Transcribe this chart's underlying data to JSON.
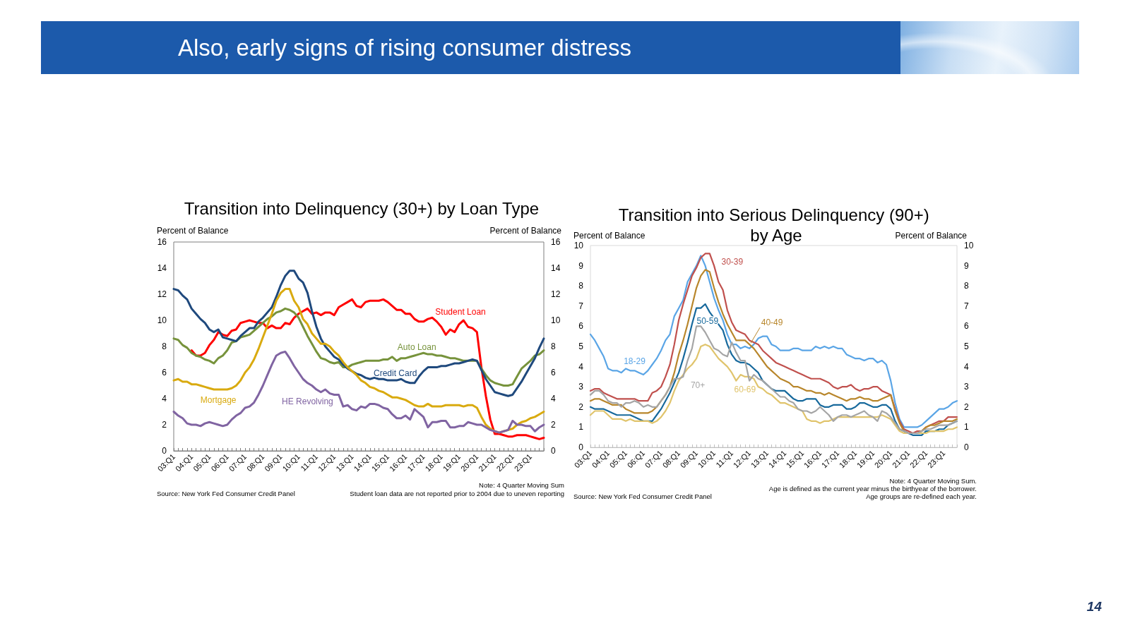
{
  "chart_data": [
    {
      "type": "other",
      "title": "Also, early signs of rising consumer distress",
      "annotations": [
        "14"
      ]
    },
    {
      "type": "line",
      "title": "Transition into Delinquency (30+) by Loan Type",
      "ylabel": "Percent of Balance",
      "y2label": "Percent of Balance",
      "categories": [
        "03:Q1",
        null,
        null,
        null,
        "04:Q1",
        null,
        null,
        null,
        "05:Q1",
        null,
        null,
        null,
        "06:Q1",
        null,
        null,
        null,
        "07:Q1",
        null,
        null,
        null,
        "08:Q1",
        null,
        null,
        null,
        "09:Q1",
        null,
        null,
        null,
        "10:Q1",
        null,
        null,
        null,
        "11:Q1",
        null,
        null,
        null,
        "12:Q1",
        null,
        null,
        null,
        "13:Q1",
        null,
        null,
        null,
        "14:Q1",
        null,
        null,
        null,
        "15:Q1",
        null,
        null,
        null,
        "16:Q1",
        null,
        null,
        null,
        "17:Q1",
        null,
        null,
        null,
        "18:Q1",
        null,
        null,
        null,
        "19:Q1",
        null,
        null,
        null,
        "20:Q1",
        null,
        null,
        null,
        "21:Q1",
        null,
        null,
        null,
        "22:Q1",
        null,
        null,
        null,
        "23:Q1",
        null,
        null,
        null
      ],
      "series": [
        {
          "name": "Student Loan",
          "color": "#ff0000",
          "values": [
            null,
            null,
            null,
            null,
            7.7,
            7.3,
            7.3,
            7.5,
            8.1,
            8.5,
            9.1,
            8.9,
            8.8,
            9.2,
            9.3,
            9.8,
            9.9,
            10.0,
            9.9,
            9.8,
            9.8,
            9.4,
            9.6,
            9.4,
            9.4,
            9.8,
            9.7,
            10.2,
            10.5,
            10.7,
            10.9,
            10.5,
            10.6,
            10.4,
            10.6,
            10.6,
            10.4,
            11.0,
            11.2,
            11.4,
            11.6,
            11.1,
            11.0,
            11.4,
            11.5,
            11.5,
            11.5,
            11.6,
            11.4,
            11.1,
            10.8,
            10.8,
            10.5,
            10.5,
            10.1,
            9.9,
            9.9,
            10.1,
            10.2,
            9.9,
            9.5,
            8.9,
            9.3,
            9.1,
            9.7,
            10.0,
            9.5,
            9.4,
            9.1,
            6.4,
            4.2,
            2.4,
            1.3,
            1.3,
            1.2,
            1.1,
            1.1,
            1.2,
            1.2,
            1.2,
            1.1,
            1.0,
            0.9,
            1.0
          ]
        },
        {
          "name": "Auto Loan",
          "color": "#77933c",
          "values": [
            8.6,
            8.5,
            8.1,
            7.9,
            7.5,
            7.3,
            7.2,
            7.0,
            6.9,
            6.7,
            7.1,
            7.3,
            7.7,
            8.3,
            8.4,
            8.7,
            8.8,
            8.9,
            9.2,
            9.5,
            9.8,
            10.1,
            10.3,
            10.6,
            10.7,
            10.9,
            10.8,
            10.6,
            10.2,
            9.5,
            8.8,
            8.2,
            7.6,
            7.1,
            7.0,
            6.8,
            6.7,
            6.8,
            6.4,
            6.4,
            6.6,
            6.7,
            6.8,
            6.9,
            6.9,
            6.9,
            6.9,
            7.0,
            7.0,
            7.2,
            6.9,
            7.1,
            7.1,
            7.2,
            7.3,
            7.4,
            7.5,
            7.4,
            7.4,
            7.3,
            7.3,
            7.2,
            7.1,
            7.1,
            7.0,
            6.9,
            6.9,
            6.9,
            6.9,
            6.3,
            5.8,
            5.4,
            5.2,
            5.1,
            5.0,
            5.0,
            5.1,
            5.7,
            6.3,
            6.6,
            6.9,
            7.3,
            7.4,
            7.7
          ]
        },
        {
          "name": "Credit Card",
          "color": "#1f497d",
          "values": [
            12.4,
            12.3,
            11.9,
            11.6,
            10.9,
            10.5,
            10.1,
            9.8,
            9.3,
            9.1,
            9.3,
            8.7,
            8.6,
            8.5,
            8.4,
            8.8,
            9.1,
            9.4,
            9.4,
            9.9,
            10.2,
            10.6,
            11.0,
            11.8,
            12.7,
            13.4,
            13.8,
            13.8,
            13.2,
            12.9,
            12.1,
            10.7,
            9.5,
            8.6,
            8.0,
            7.6,
            7.2,
            7.0,
            6.6,
            6.3,
            6.1,
            5.9,
            5.8,
            5.6,
            5.5,
            5.6,
            5.5,
            5.5,
            5.4,
            5.4,
            5.4,
            5.5,
            5.3,
            5.2,
            5.2,
            5.7,
            6.1,
            6.4,
            6.4,
            6.4,
            6.5,
            6.5,
            6.6,
            6.7,
            6.7,
            6.8,
            6.9,
            7.0,
            6.9,
            6.2,
            5.5,
            5.0,
            4.5,
            4.4,
            4.3,
            4.2,
            4.3,
            4.8,
            5.3,
            5.9,
            6.5,
            7.1,
            7.9,
            8.6
          ]
        },
        {
          "name": "Mortgage",
          "color": "#d9aa0f",
          "values": [
            5.4,
            5.5,
            5.3,
            5.3,
            5.1,
            5.1,
            5.0,
            4.9,
            4.8,
            4.7,
            4.7,
            4.7,
            4.7,
            4.8,
            5.0,
            5.4,
            6.0,
            6.4,
            7.0,
            7.8,
            8.7,
            9.6,
            10.5,
            11.5,
            12.1,
            12.4,
            12.4,
            11.5,
            11.0,
            10.1,
            9.7,
            9.0,
            8.6,
            8.2,
            8.2,
            8.0,
            7.6,
            7.3,
            6.8,
            6.4,
            6.1,
            5.8,
            5.4,
            5.2,
            4.9,
            4.8,
            4.6,
            4.5,
            4.3,
            4.1,
            4.1,
            4.0,
            3.9,
            3.7,
            3.5,
            3.4,
            3.4,
            3.6,
            3.4,
            3.4,
            3.4,
            3.5,
            3.5,
            3.5,
            3.5,
            3.4,
            3.5,
            3.5,
            3.3,
            2.6,
            2.0,
            1.7,
            1.5,
            1.4,
            1.5,
            1.6,
            1.7,
            2.0,
            2.2,
            2.3,
            2.5,
            2.6,
            2.8,
            3.0
          ]
        },
        {
          "name": "HE Revolving",
          "color": "#8064a2",
          "values": [
            3.0,
            2.7,
            2.5,
            2.1,
            2.0,
            2.0,
            1.9,
            2.1,
            2.2,
            2.1,
            2.0,
            1.9,
            2.0,
            2.4,
            2.7,
            2.9,
            3.3,
            3.4,
            3.7,
            4.3,
            5.0,
            5.8,
            6.6,
            7.3,
            7.5,
            7.6,
            7.1,
            6.5,
            6.0,
            5.5,
            5.2,
            5.0,
            4.7,
            4.5,
            4.7,
            4.4,
            4.3,
            4.3,
            3.4,
            3.5,
            3.2,
            3.1,
            3.4,
            3.3,
            3.6,
            3.6,
            3.5,
            3.3,
            3.2,
            2.8,
            2.5,
            2.5,
            2.7,
            2.4,
            3.2,
            2.9,
            2.6,
            1.8,
            2.2,
            2.2,
            2.3,
            2.3,
            1.8,
            1.8,
            1.9,
            1.9,
            2.2,
            2.1,
            2.0,
            2.0,
            1.8,
            1.6,
            1.5,
            1.4,
            1.5,
            1.6,
            2.3,
            2.0,
            2.0,
            1.9,
            1.9,
            1.5,
            1.8,
            2.0
          ]
        }
      ],
      "ylim": [
        0,
        16
      ],
      "yticks": [
        0,
        2,
        4,
        6,
        8,
        10,
        12,
        14,
        16
      ],
      "y2lim": [
        0,
        16
      ],
      "y2ticks": [
        0,
        2,
        4,
        6,
        8,
        10,
        12,
        14,
        16
      ],
      "annotations": [
        "Note: 4 Quarter Moving Sum",
        "Student loan data are not reported prior to 2004 due to uneven reporting",
        "Source: New York Fed Consumer Credit Panel"
      ]
    },
    {
      "type": "line",
      "title": "Transition into Serious Delinquency (90+) by Age",
      "ylabel": "Percent of Balance",
      "y2label": "Percent of Balance",
      "categories": [
        "03:Q1",
        null,
        null,
        null,
        "04:Q1",
        null,
        null,
        null,
        "05:Q1",
        null,
        null,
        null,
        "06:Q1",
        null,
        null,
        null,
        "07:Q1",
        null,
        null,
        null,
        "08:Q1",
        null,
        null,
        null,
        "09:Q1",
        null,
        null,
        null,
        "10:Q1",
        null,
        null,
        null,
        "11:Q1",
        null,
        null,
        null,
        "12:Q1",
        null,
        null,
        null,
        "13:Q1",
        null,
        null,
        null,
        "14:Q1",
        null,
        null,
        null,
        "15:Q1",
        null,
        null,
        null,
        "16:Q1",
        null,
        null,
        null,
        "17:Q1",
        null,
        null,
        null,
        "18:Q1",
        null,
        null,
        null,
        "19:Q1",
        null,
        null,
        null,
        "20:Q1",
        null,
        null,
        null,
        "21:Q1",
        null,
        null,
        null,
        "22:Q1",
        null,
        null,
        null,
        "23:Q1",
        null,
        null,
        null
      ],
      "series": [
        {
          "name": "18-29",
          "color": "#5aa5e6",
          "values": [
            5.6,
            5.3,
            4.9,
            4.5,
            3.9,
            3.8,
            3.8,
            3.7,
            3.9,
            3.8,
            3.8,
            3.7,
            3.6,
            3.8,
            4.1,
            4.4,
            4.8,
            5.3,
            5.6,
            6.5,
            6.9,
            7.3,
            8.2,
            8.6,
            9.0,
            9.5,
            9.0,
            8.2,
            7.4,
            6.8,
            6.3,
            5.6,
            5.1,
            5.1,
            4.9,
            5.0,
            4.9,
            5.1,
            5.4,
            5.5,
            5.5,
            5.1,
            5.0,
            4.8,
            4.8,
            4.8,
            4.9,
            4.9,
            4.8,
            4.8,
            4.8,
            5.0,
            4.9,
            5.0,
            4.9,
            5.0,
            4.9,
            4.9,
            4.6,
            4.5,
            4.4,
            4.4,
            4.3,
            4.4,
            4.4,
            4.2,
            4.3,
            4.1,
            3.3,
            2.2,
            1.4,
            1.0,
            1.0,
            1.0,
            1.0,
            1.1,
            1.3,
            1.5,
            1.7,
            1.9,
            1.9,
            2.0,
            2.2,
            2.3
          ]
        },
        {
          "name": "30-39",
          "color": "#c0504d",
          "values": [
            2.8,
            2.9,
            2.9,
            2.7,
            2.6,
            2.5,
            2.4,
            2.4,
            2.4,
            2.4,
            2.4,
            2.3,
            2.3,
            2.3,
            2.7,
            2.8,
            3.0,
            3.5,
            4.1,
            5.1,
            6.3,
            7.1,
            7.8,
            8.5,
            8.9,
            9.4,
            9.6,
            9.6,
            9.0,
            8.2,
            7.8,
            6.8,
            6.2,
            5.8,
            5.7,
            5.6,
            5.3,
            5.2,
            5.1,
            4.8,
            4.6,
            4.4,
            4.2,
            4.1,
            4.0,
            3.9,
            3.8,
            3.7,
            3.6,
            3.5,
            3.4,
            3.4,
            3.4,
            3.3,
            3.2,
            3.0,
            2.9,
            3.0,
            3.0,
            3.1,
            2.9,
            2.8,
            2.9,
            2.9,
            3.0,
            3.0,
            2.8,
            2.7,
            2.6,
            1.9,
            1.3,
            0.9,
            0.8,
            0.7,
            0.8,
            0.8,
            1.0,
            1.1,
            1.2,
            1.3,
            1.3,
            1.5,
            1.5,
            1.5
          ]
        },
        {
          "name": "40-49",
          "color": "#b8862b",
          "values": [
            2.3,
            2.4,
            2.4,
            2.3,
            2.2,
            2.1,
            2.1,
            2.1,
            1.9,
            1.8,
            1.7,
            1.7,
            1.7,
            1.7,
            1.8,
            2.0,
            2.3,
            2.6,
            3.0,
            3.7,
            4.6,
            5.3,
            6.1,
            7.0,
            7.9,
            8.5,
            8.8,
            8.7,
            7.9,
            7.2,
            6.6,
            6.1,
            5.7,
            5.3,
            5.3,
            5.3,
            5.1,
            4.9,
            4.6,
            4.3,
            4.0,
            3.8,
            3.6,
            3.4,
            3.3,
            3.2,
            3.0,
            3.0,
            2.9,
            2.8,
            2.8,
            2.7,
            2.7,
            2.6,
            2.7,
            2.6,
            2.5,
            2.4,
            2.3,
            2.4,
            2.4,
            2.5,
            2.4,
            2.4,
            2.3,
            2.3,
            2.4,
            2.5,
            2.6,
            1.8,
            1.2,
            0.8,
            0.7,
            0.7,
            0.7,
            0.8,
            1.0,
            1.1,
            1.1,
            1.2,
            1.3,
            1.3,
            1.3,
            1.4
          ]
        },
        {
          "name": "50-59",
          "color": "#17699c",
          "values": [
            2.0,
            1.9,
            1.9,
            1.9,
            1.8,
            1.7,
            1.6,
            1.6,
            1.6,
            1.6,
            1.5,
            1.4,
            1.3,
            1.3,
            1.3,
            1.6,
            1.9,
            2.3,
            2.7,
            3.2,
            3.7,
            4.4,
            5.2,
            6.1,
            6.9,
            6.9,
            7.1,
            6.7,
            6.4,
            6.1,
            5.8,
            5.1,
            4.6,
            4.3,
            4.2,
            4.2,
            4.1,
            3.9,
            3.7,
            3.3,
            3.1,
            2.9,
            2.8,
            2.8,
            2.8,
            2.6,
            2.4,
            2.3,
            2.3,
            2.4,
            2.4,
            2.4,
            2.1,
            2.0,
            2.0,
            2.1,
            2.1,
            2.1,
            1.9,
            1.9,
            2.0,
            2.2,
            2.2,
            2.1,
            2.0,
            2.0,
            2.1,
            2.1,
            1.9,
            1.3,
            0.9,
            0.8,
            0.7,
            0.6,
            0.6,
            0.6,
            0.8,
            0.8,
            0.8,
            0.9,
            0.9,
            1.1,
            1.2,
            1.3
          ]
        },
        {
          "name": "60-69",
          "color": "#e0c46c",
          "values": [
            1.6,
            1.8,
            1.8,
            1.8,
            1.6,
            1.4,
            1.4,
            1.4,
            1.3,
            1.4,
            1.3,
            1.3,
            1.3,
            1.3,
            1.2,
            1.3,
            1.5,
            1.8,
            2.2,
            2.8,
            3.3,
            3.6,
            3.9,
            4.1,
            4.4,
            5.0,
            5.1,
            5.0,
            4.7,
            4.4,
            4.2,
            4.0,
            3.7,
            3.3,
            3.6,
            3.5,
            3.5,
            3.4,
            3.0,
            2.9,
            2.7,
            2.6,
            2.4,
            2.2,
            2.2,
            2.1,
            2.0,
            1.9,
            1.8,
            1.4,
            1.3,
            1.3,
            1.2,
            1.3,
            1.3,
            1.4,
            1.5,
            1.5,
            1.5,
            1.5,
            1.5,
            1.5,
            1.5,
            1.5,
            1.5,
            1.5,
            1.6,
            1.5,
            1.4,
            1.1,
            0.8,
            0.7,
            0.7,
            0.7,
            0.7,
            0.7,
            0.7,
            0.8,
            0.8,
            0.8,
            0.8,
            0.9,
            0.9,
            1.0
          ]
        },
        {
          "name": "70+",
          "color": "#a5a5a5",
          "values": [
            2.6,
            2.8,
            2.8,
            2.6,
            2.3,
            2.2,
            2.2,
            2.0,
            2.2,
            2.2,
            2.3,
            2.2,
            2.0,
            2.1,
            2.0,
            2.0,
            2.3,
            2.6,
            3.0,
            3.4,
            3.4,
            3.5,
            4.3,
            4.9,
            6.0,
            6.0,
            5.7,
            5.3,
            4.9,
            4.8,
            4.6,
            4.5,
            5.2,
            4.7,
            4.3,
            4.3,
            3.3,
            3.6,
            3.4,
            3.3,
            3.1,
            2.9,
            2.7,
            2.5,
            2.5,
            2.3,
            2.2,
            1.9,
            1.8,
            1.8,
            1.7,
            1.8,
            2.0,
            1.8,
            1.6,
            1.3,
            1.5,
            1.6,
            1.6,
            1.5,
            1.6,
            1.7,
            1.8,
            1.6,
            1.5,
            1.3,
            1.8,
            1.7,
            1.5,
            1.2,
            0.9,
            0.8,
            0.7,
            0.7,
            0.7,
            0.8,
            0.9,
            0.9,
            1.0,
            1.1,
            1.1,
            1.1,
            1.2,
            1.3
          ]
        }
      ],
      "ylim": [
        0,
        10
      ],
      "yticks": [
        0,
        1,
        2,
        3,
        4,
        5,
        6,
        7,
        8,
        9,
        10
      ],
      "y2lim": [
        0,
        10
      ],
      "y2ticks": [
        0,
        1,
        2,
        3,
        4,
        5,
        6,
        7,
        8,
        9,
        10
      ],
      "annotations": [
        "Note: 4 Quarter Moving Sum.",
        "Age is defined as the current year minus the birthyear of the borrower.",
        "Age groups are re-defined each year.",
        "Source: New York Fed Consumer Credit Panel"
      ]
    }
  ]
}
